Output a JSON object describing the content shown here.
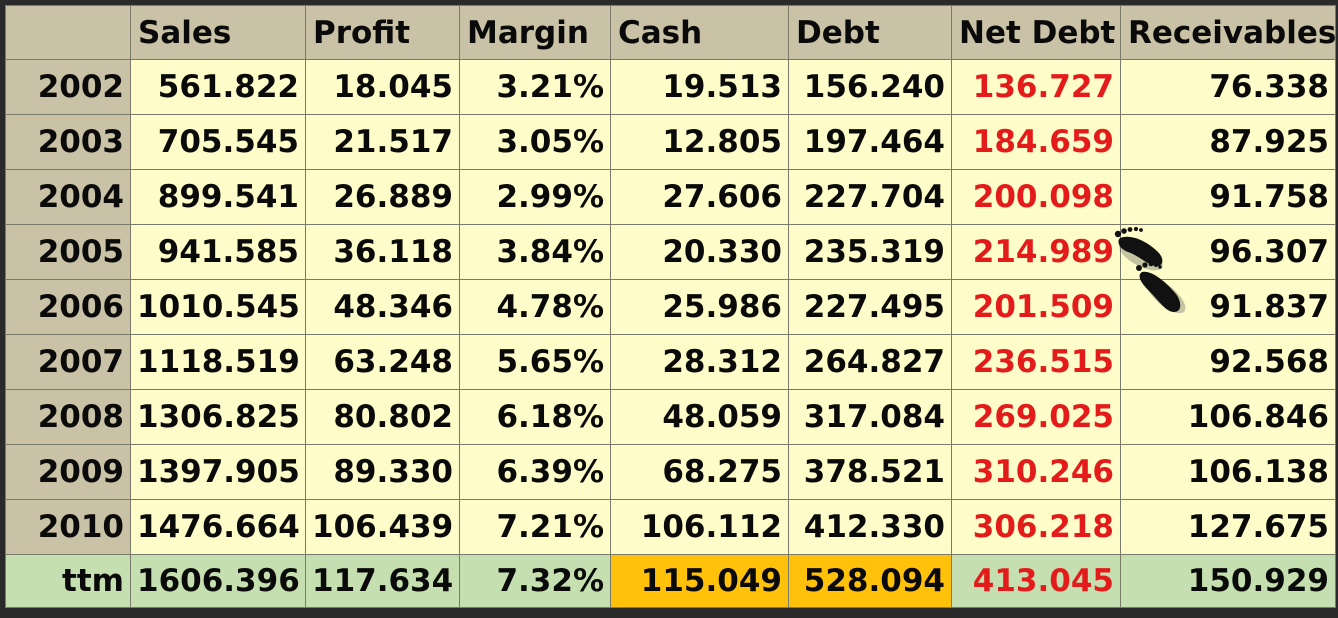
{
  "columns": [
    "Sales",
    "Profit",
    "Margin",
    "Cash",
    "Debt",
    "Net Debt",
    "Receivables"
  ],
  "rows": [
    {
      "label": "2002",
      "values": [
        "561.822",
        "18.045",
        "3.21%",
        "19.513",
        "156.240",
        "136.727",
        "76.338"
      ]
    },
    {
      "label": "2003",
      "values": [
        "705.545",
        "21.517",
        "3.05%",
        "12.805",
        "197.464",
        "184.659",
        "87.925"
      ]
    },
    {
      "label": "2004",
      "values": [
        "899.541",
        "26.889",
        "2.99%",
        "27.606",
        "227.704",
        "200.098",
        "91.758"
      ]
    },
    {
      "label": "2005",
      "values": [
        "941.585",
        "36.118",
        "3.84%",
        "20.330",
        "235.319",
        "214.989",
        "96.307"
      ]
    },
    {
      "label": "2006",
      "values": [
        "1010.545",
        "48.346",
        "4.78%",
        "25.986",
        "227.495",
        "201.509",
        "91.837"
      ]
    },
    {
      "label": "2007",
      "values": [
        "1118.519",
        "63.248",
        "5.65%",
        "28.312",
        "264.827",
        "236.515",
        "92.568"
      ]
    },
    {
      "label": "2008",
      "values": [
        "1306.825",
        "80.802",
        "6.18%",
        "48.059",
        "317.084",
        "269.025",
        "106.846"
      ]
    },
    {
      "label": "2009",
      "values": [
        "1397.905",
        "89.330",
        "6.39%",
        "68.275",
        "378.521",
        "310.246",
        "106.138"
      ]
    },
    {
      "label": "2010",
      "values": [
        "1476.664",
        "106.439",
        "7.21%",
        "106.112",
        "412.330",
        "306.218",
        "127.675"
      ]
    }
  ],
  "total_row": {
    "label": "ttm",
    "values": [
      "1606.396",
      "117.634",
      "7.32%",
      "115.049",
      "528.094",
      "413.045",
      "150.929"
    ]
  },
  "colors": {
    "header_bg": "#c9c2a6",
    "cell_bg": "#fefdc9",
    "ttm_bg": "#c5dfb0",
    "highlight_bg": "#ffc10a",
    "net_debt_text": "#e31b1b"
  },
  "icons": {
    "footprints": "footprints-icon"
  }
}
